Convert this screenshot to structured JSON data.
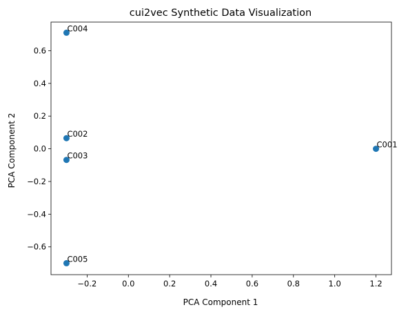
{
  "chart_data": {
    "type": "scatter",
    "title": "cui2vec Synthetic Data Visualization",
    "xlabel": "PCA Component 1",
    "ylabel": "PCA Component 2",
    "xlim": [
      -0.375,
      1.275
    ],
    "ylim": [
      -0.77,
      0.775
    ],
    "xticks": [
      -0.2,
      0.0,
      0.2,
      0.4,
      0.6,
      0.8,
      1.0,
      1.2
    ],
    "xtick_labels": [
      "−0.2",
      "0.0",
      "0.2",
      "0.4",
      "0.6",
      "0.8",
      "1.0",
      "1.2"
    ],
    "yticks": [
      -0.6,
      -0.4,
      -0.2,
      0.0,
      0.2,
      0.4,
      0.6
    ],
    "ytick_labels": [
      "−0.6",
      "−0.4",
      "−0.2",
      "0.0",
      "0.2",
      "0.4",
      "0.6"
    ],
    "grid": false,
    "legend": "none",
    "marker_color": "#1f77b4",
    "points": [
      {
        "label": "C001",
        "x": 1.2,
        "y": 0.0
      },
      {
        "label": "C002",
        "x": -0.3,
        "y": 0.065
      },
      {
        "label": "C003",
        "x": -0.3,
        "y": -0.068
      },
      {
        "label": "C004",
        "x": -0.3,
        "y": 0.71
      },
      {
        "label": "C005",
        "x": -0.3,
        "y": -0.7
      }
    ]
  }
}
